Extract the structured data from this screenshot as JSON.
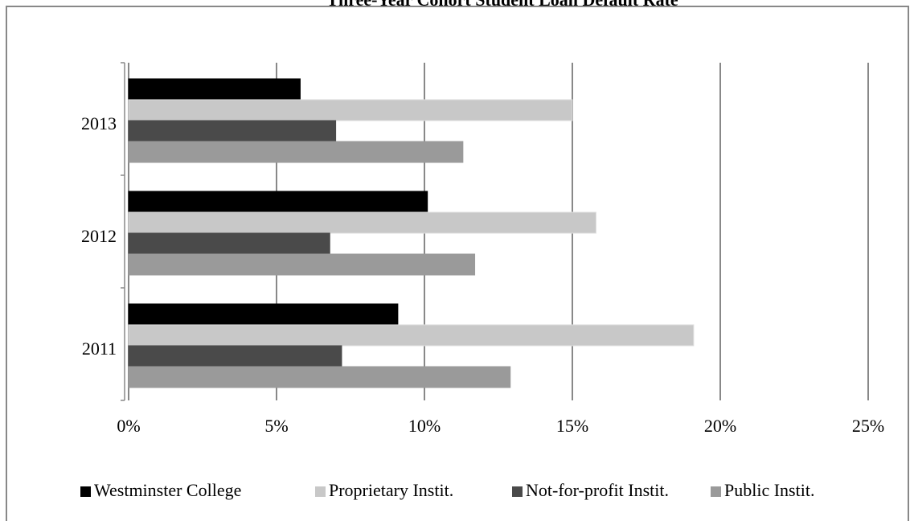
{
  "chart_data": {
    "type": "hbar",
    "title": "Three-Year Cohort Student Loan Default Rate",
    "categories": [
      "2011",
      "2012",
      "2013"
    ],
    "series": [
      {
        "name": "Westminster College",
        "color": "#000000",
        "values": [
          9.1,
          10.1,
          5.8
        ]
      },
      {
        "name": "Proprietary Instit.",
        "color": "#c8c8c8",
        "values": [
          19.1,
          15.8,
          15.0
        ]
      },
      {
        "name": "Not-for-profit Instit.",
        "color": "#4a4a4a",
        "values": [
          7.2,
          6.8,
          7.0
        ]
      },
      {
        "name": "Public Instit.",
        "color": "#9a9a9a",
        "values": [
          12.9,
          11.7,
          11.3
        ]
      }
    ],
    "xlim": [
      0,
      25
    ],
    "xticks": [
      {
        "value": 0,
        "label": "0%"
      },
      {
        "value": 5,
        "label": "5%"
      },
      {
        "value": 10,
        "label": "10%"
      },
      {
        "value": 15,
        "label": "15%"
      },
      {
        "value": 20,
        "label": "20%"
      },
      {
        "value": 25,
        "label": "25%"
      }
    ],
    "grid": true,
    "legend": "bottom"
  }
}
